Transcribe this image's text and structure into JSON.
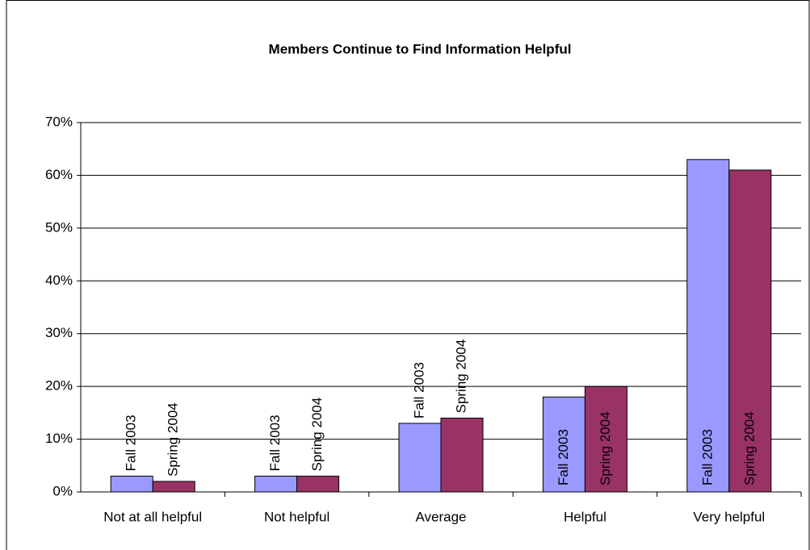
{
  "chart_data": {
    "type": "bar",
    "title": "Members Continue to Find Information Helpful",
    "categories": [
      "Not at all helpful",
      "Not helpful",
      "Average",
      "Helpful",
      "Very helpful"
    ],
    "series": [
      {
        "name": "Fall 2003",
        "color": "#9999ff",
        "values": [
          3,
          3,
          13,
          18,
          63
        ]
      },
      {
        "name": "Spring 2004",
        "color": "#993366",
        "values": [
          2,
          3,
          14,
          20,
          61
        ]
      }
    ],
    "ylim": [
      0,
      70
    ],
    "yticks": [
      {
        "value": 0,
        "label": "0%"
      },
      {
        "value": 10,
        "label": "10%"
      },
      {
        "value": 20,
        "label": "20%"
      },
      {
        "value": 30,
        "label": "30%"
      },
      {
        "value": 40,
        "label": "40%"
      },
      {
        "value": 50,
        "label": "50%"
      },
      {
        "value": 60,
        "label": "60%"
      },
      {
        "value": 70,
        "label": "70%"
      }
    ],
    "grid": true
  }
}
